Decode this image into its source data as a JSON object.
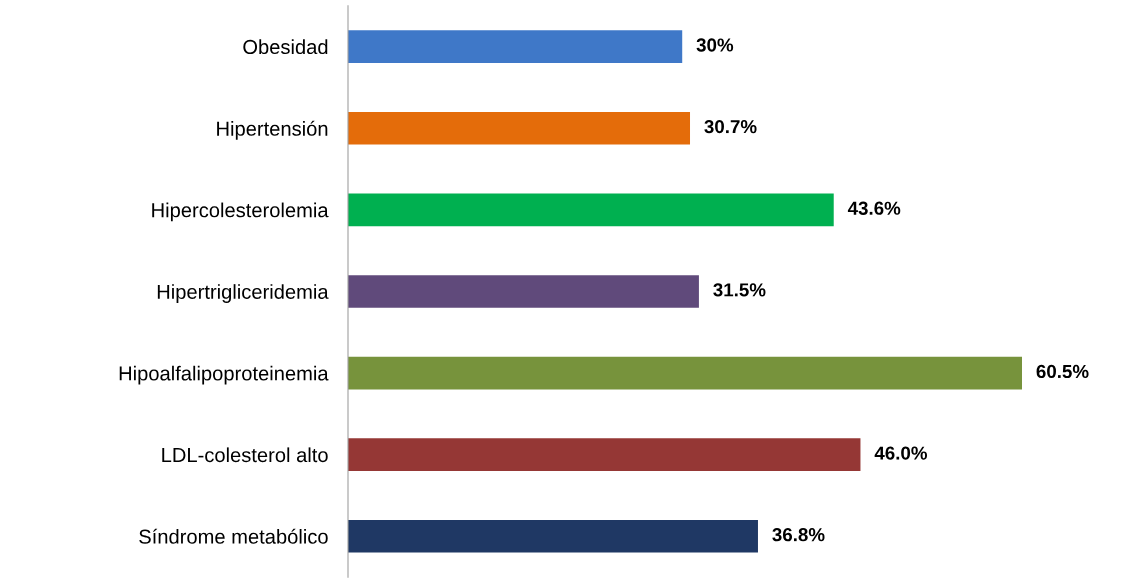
{
  "chart_data": {
    "type": "bar",
    "orientation": "horizontal",
    "categories": [
      "Obesidad",
      "Hipertensión",
      "Hipercolesterolemia",
      "Hipertrigliceridemia",
      "Hipoalfalipoproteinemia",
      "LDL-colesterol alto",
      "Síndrome metabólico"
    ],
    "values": [
      30,
      30.7,
      43.6,
      31.5,
      60.5,
      46.0,
      36.8
    ],
    "value_labels": [
      "30%",
      "30.7%",
      "43.6%",
      "31.5%",
      "60.5%",
      "46.0%",
      "36.8%"
    ],
    "colors": [
      "#3f78c8",
      "#e46c0a",
      "#00b050",
      "#604a7b",
      "#77933c",
      "#953735",
      "#1f3864"
    ],
    "tick_labels": "y",
    "grid": false,
    "legend": false
  }
}
